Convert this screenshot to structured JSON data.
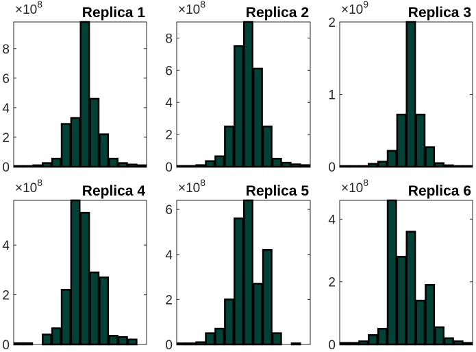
{
  "chart_data": [
    {
      "type": "bar",
      "title": "Replica 1",
      "exponent_base": "×10",
      "exponent": "8",
      "ylim": [
        0,
        9.8
      ],
      "yticks": [
        0,
        2,
        4,
        6,
        8
      ],
      "values": [
        0.05,
        0.05,
        0.1,
        0.25,
        0.55,
        2.9,
        3.3,
        9.8,
        4.6,
        2.2,
        0.55,
        0.25,
        0.15,
        0.1
      ]
    },
    {
      "type": "bar",
      "title": "Replica 2",
      "exponent_base": "×10",
      "exponent": "8",
      "ylim": [
        0,
        9
      ],
      "yticks": [
        0,
        2,
        4,
        6,
        8
      ],
      "values": [
        0.05,
        0.05,
        0.1,
        0.35,
        0.65,
        2.5,
        7.5,
        9,
        6.1,
        2.5,
        0.5,
        0.25,
        0.15,
        0.1
      ]
    },
    {
      "type": "bar",
      "title": "Replica 3",
      "exponent_base": "×10",
      "exponent": "9",
      "ylim": [
        0,
        2
      ],
      "yticks": [
        0,
        1,
        2
      ],
      "values": [
        0.01,
        0.01,
        0.01,
        0.04,
        0.07,
        0.22,
        0.72,
        2.0,
        0.72,
        0.27,
        0.05,
        0.02,
        0.01,
        0.01
      ]
    },
    {
      "type": "bar",
      "title": "Replica 4",
      "exponent_base": "×10",
      "exponent": "8",
      "ylim": [
        0,
        5.8
      ],
      "yticks": [
        0,
        2,
        4
      ],
      "values": [
        0.05,
        0.05,
        0,
        0.4,
        0.65,
        2.2,
        5.8,
        5.3,
        2.9,
        2.7,
        0.35,
        0.3,
        0.2,
        0
      ]
    },
    {
      "type": "bar",
      "title": "Replica 5",
      "exponent_base": "×10",
      "exponent": "8",
      "ylim": [
        0,
        6.4
      ],
      "yticks": [
        0,
        2,
        4,
        6
      ],
      "values": [
        0.05,
        0.05,
        0.1,
        0.5,
        0.7,
        2.0,
        5.6,
        6.4,
        2.7,
        4.2,
        0.5,
        0,
        0.05,
        0
      ]
    },
    {
      "type": "bar",
      "title": "Replica 6",
      "exponent_base": "×10",
      "exponent": "8",
      "ylim": [
        0,
        4.6
      ],
      "yticks": [
        0,
        2,
        4
      ],
      "values": [
        0.05,
        0.05,
        0.1,
        0.3,
        0.5,
        4.6,
        2.8,
        3.6,
        1.4,
        1.9,
        0.55,
        0.2,
        0.1,
        0.05
      ]
    }
  ],
  "bar_color": "#024236",
  "edge_color": "#000000"
}
